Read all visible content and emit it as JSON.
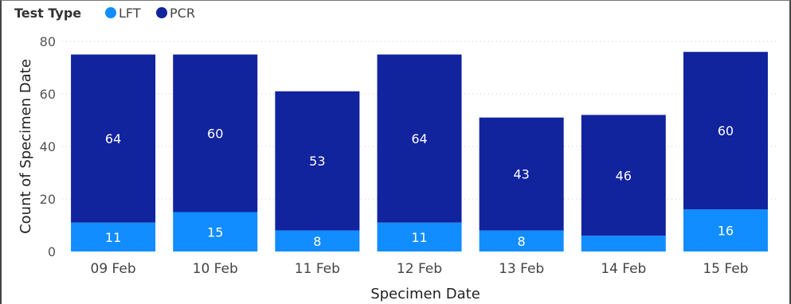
{
  "chart_data": {
    "type": "bar",
    "stacked": true,
    "legend": {
      "title": "Test Type",
      "position": "top-left"
    },
    "categories": [
      "09 Feb",
      "10 Feb",
      "11 Feb",
      "12 Feb",
      "13 Feb",
      "14 Feb",
      "15 Feb"
    ],
    "series": [
      {
        "name": "LFT",
        "color": "#118DFF",
        "values": [
          11,
          15,
          8,
          11,
          8,
          6,
          16
        ],
        "labels": [
          "11",
          "15",
          "8",
          "11",
          "8",
          "",
          "16"
        ]
      },
      {
        "name": "PCR",
        "color": "#12239E",
        "values": [
          64,
          60,
          53,
          64,
          43,
          46,
          60
        ],
        "labels": [
          "64",
          "60",
          "53",
          "64",
          "43",
          "46",
          "60"
        ]
      }
    ],
    "xlabel": "Specimen Date",
    "ylabel": "Count of Specimen Date",
    "ylim": [
      0,
      80
    ],
    "yticks": [
      0,
      20,
      40,
      60,
      80
    ],
    "grid": "horizontal-dotted"
  }
}
